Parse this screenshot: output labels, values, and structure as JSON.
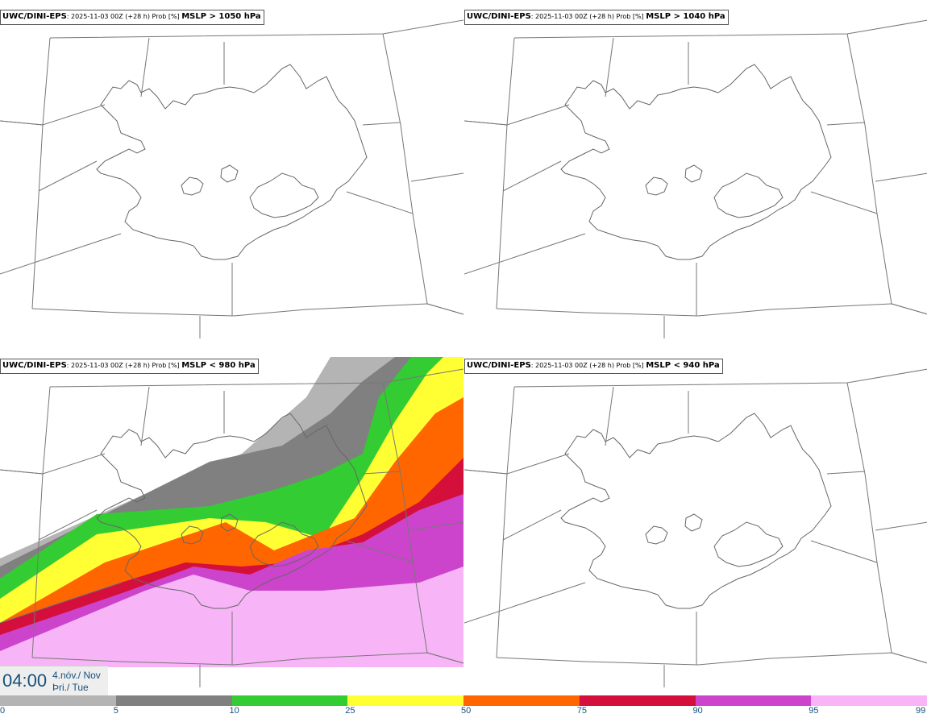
{
  "panels": [
    {
      "model": "UWC/DINI-EPS",
      "meta": ": 2025-11-03 00Z (+28 h) Prob [%] ",
      "param": "MSLP > 1050 hPa"
    },
    {
      "model": "UWC/DINI-EPS",
      "meta": ": 2025-11-03 00Z (+28 h) Prob [%] ",
      "param": "MSLP > 1040 hPa"
    },
    {
      "model": "UWC/DINI-EPS",
      "meta": ": 2025-11-03 00Z (+28 h) Prob [%] ",
      "param": "MSLP < 980 hPa"
    },
    {
      "model": "UWC/DINI-EPS",
      "meta": ": 2025-11-03 00Z (+28 h) Prob [%] ",
      "param": "MSLP < 940 hPa"
    }
  ],
  "time": {
    "clock": "04:00",
    "date_line1": "4.nóv./ Nov",
    "date_line2": "Þri./ Tue"
  },
  "legend": {
    "ticks": [
      "0",
      "5",
      "10",
      "25",
      "50",
      "75",
      "90",
      "95",
      "99"
    ],
    "colors": [
      "#ffffff",
      "#b4b4b4",
      "#808080",
      "#33cc33",
      "#ffff33",
      "#ff6600",
      "#d40f3c",
      "#cc44cc",
      "#f7b5f7"
    ]
  }
}
